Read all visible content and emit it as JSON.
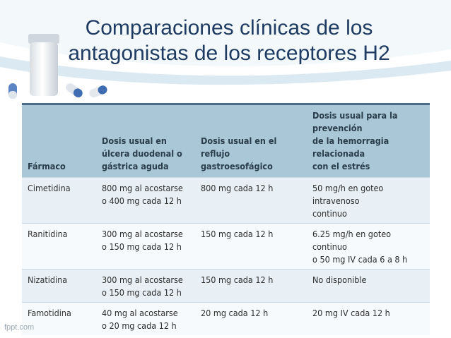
{
  "slide": {
    "title_line1": "Comparaciones clínicas de los",
    "title_line2": "antagonistas de los receptores H2"
  },
  "table": {
    "headers": [
      [
        "Fármaco"
      ],
      [
        "Dosis usual en",
        "úlcera duodenal o",
        "gástrica aguda"
      ],
      [
        "Dosis usual en el reflujo",
        "gastroesofágico"
      ],
      [
        "Dosis usual para la prevención",
        "de la hemorragia relacionada",
        "con el estrés"
      ]
    ],
    "rows": [
      {
        "drug": "Cimetidina",
        "ulcer": [
          "800 mg al acostarse",
          "o 400 mg cada 12 h"
        ],
        "reflux": [
          "800 mg cada 12 h"
        ],
        "prevention": [
          "50 mg/h en goteo intravenoso",
          "continuo"
        ]
      },
      {
        "drug": "Ranitidina",
        "ulcer": [
          "300 mg al acostarse",
          "o 150 mg cada 12 h"
        ],
        "reflux": [
          "150 mg cada 12 h"
        ],
        "prevention": [
          "6.25 mg/h en goteo continuo",
          "o 50 mg IV cada 6 a 8 h"
        ]
      },
      {
        "drug": "Nizatidina",
        "ulcer": [
          "300 mg al acostarse",
          "o 150 mg cada 12 h"
        ],
        "reflux": [
          "150 mg cada 12 h"
        ],
        "prevention": [
          "No disponible"
        ]
      },
      {
        "drug": "Famotidina",
        "ulcer": [
          "40 mg al acostarse",
          "o 20 mg cada 12 h"
        ],
        "reflux": [
          "20 mg cada 12 h"
        ],
        "prevention": [
          "20 mg IV cada 12 h"
        ]
      }
    ]
  },
  "footer": {
    "brand": "fppt.com"
  },
  "decor": {
    "pill_icon": "pill-bottle-and-capsules-icon",
    "swoosh_color": "#cfe3ef",
    "title_color": "#1f3b62"
  }
}
